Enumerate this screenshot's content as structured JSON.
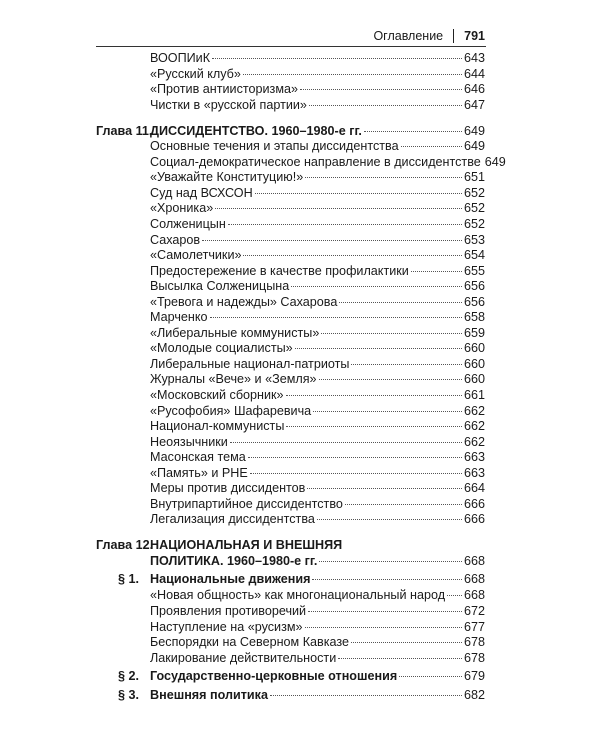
{
  "header": {
    "section": "Оглавление",
    "page_number": "791"
  },
  "entries": [
    {
      "type": "sub",
      "text": "ВООПИиК",
      "page": "643"
    },
    {
      "type": "sub",
      "text": "«Русский клуб»",
      "page": "644"
    },
    {
      "type": "sub",
      "text": "«Против антиисторизма»",
      "page": "646"
    },
    {
      "type": "sub",
      "text": "Чистки в «русской партии»",
      "page": "647"
    },
    {
      "type": "chapter",
      "prefix": "Глава 11.",
      "text": "ДИССИДЕНТСТВО. 1960–1980-е гг.",
      "page": "649"
    },
    {
      "type": "sub",
      "text": "Основные течения и этапы диссидентства",
      "page": "649"
    },
    {
      "type": "sub",
      "text": "Социал-демократическое направление в диссидентстве",
      "page": "649"
    },
    {
      "type": "sub",
      "text": "«Уважайте Конституцию!»",
      "page": "651"
    },
    {
      "type": "sub",
      "text": "Суд над ВСХСОН",
      "page": "652"
    },
    {
      "type": "sub",
      "text": "«Хроника»",
      "page": "652"
    },
    {
      "type": "sub",
      "text": "Солженицын",
      "page": "652"
    },
    {
      "type": "sub",
      "text": "Сахаров",
      "page": "653"
    },
    {
      "type": "sub",
      "text": "«Самолетчики»",
      "page": "654"
    },
    {
      "type": "sub",
      "text": "Предостережение в качестве профилактики",
      "page": "655"
    },
    {
      "type": "sub",
      "text": "Высылка Солженицына",
      "page": "656"
    },
    {
      "type": "sub",
      "text": "«Тревога и надежды» Сахарова",
      "page": "656"
    },
    {
      "type": "sub",
      "text": "Марченко",
      "page": "658"
    },
    {
      "type": "sub",
      "text": "«Либеральные коммунисты»",
      "page": "659"
    },
    {
      "type": "sub",
      "text": "«Молодые социалисты»",
      "page": "660"
    },
    {
      "type": "sub",
      "text": "Либеральные национал-патриоты",
      "page": "660"
    },
    {
      "type": "sub",
      "text": "Журналы «Вече» и «Земля»",
      "page": "660"
    },
    {
      "type": "sub",
      "text": "«Московский сборник»",
      "page": "661"
    },
    {
      "type": "sub",
      "text": "«Русофобия» Шафаревича",
      "page": "662"
    },
    {
      "type": "sub",
      "text": "Национал-коммунисты",
      "page": "662"
    },
    {
      "type": "sub",
      "text": "Неоязычники",
      "page": "662"
    },
    {
      "type": "sub",
      "text": "Масонская тема",
      "page": "663"
    },
    {
      "type": "sub",
      "text": "«Память» и РНЕ",
      "page": "663"
    },
    {
      "type": "sub",
      "text": "Меры против диссидентов",
      "page": "664"
    },
    {
      "type": "sub",
      "text": "Внутрипартийное диссидентство",
      "page": "666"
    },
    {
      "type": "sub",
      "text": "Легализация диссидентства",
      "page": "666"
    },
    {
      "type": "chapter-line1",
      "prefix": "Глава 12.",
      "text": "НАЦИОНАЛЬНАЯ И ВНЕШНЯЯ"
    },
    {
      "type": "chapter-line2",
      "text": "ПОЛИТИКА. 1960–1980-е гг.",
      "page": "668"
    },
    {
      "type": "section",
      "prefix": "§ 1.",
      "text": "Национальные движения",
      "page": "668"
    },
    {
      "type": "sub",
      "text": "«Новая общность» как многонациональный народ",
      "page": "668"
    },
    {
      "type": "sub",
      "text": "Проявления противоречий",
      "page": "672"
    },
    {
      "type": "sub",
      "text": "Наступление на «русизм»",
      "page": "677"
    },
    {
      "type": "sub",
      "text": "Беспорядки на Северном Кавказе",
      "page": "678"
    },
    {
      "type": "sub",
      "text": "Лакирование действительности",
      "page": "678"
    },
    {
      "type": "section",
      "prefix": "§ 2.",
      "text": "Государственно-церковные отношения",
      "page": "679"
    },
    {
      "type": "section",
      "prefix": "§ 3.",
      "text": "Внешняя политика",
      "page": "682"
    }
  ]
}
